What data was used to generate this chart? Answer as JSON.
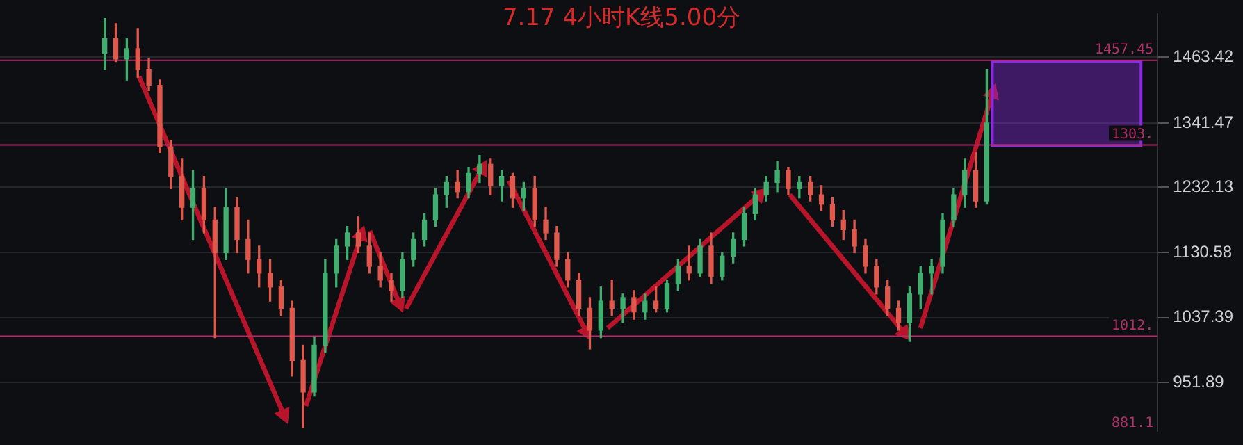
{
  "chart_data": {
    "type": "candlestick",
    "title": "7.17 4小时K线5.00分",
    "categories": [
      null,
      null,
      null,
      null,
      null,
      null,
      null,
      null,
      null,
      null,
      null,
      null,
      null,
      null,
      null,
      null,
      null,
      null,
      null,
      null,
      null,
      null,
      null,
      null,
      null,
      null,
      null,
      null,
      null,
      null,
      null,
      null,
      null,
      null,
      null,
      null,
      null,
      null,
      null,
      null,
      null,
      null,
      null,
      null,
      null,
      null,
      null,
      null,
      null,
      null,
      null,
      null,
      null,
      null,
      null,
      null,
      null,
      null,
      null,
      null,
      null,
      null,
      null,
      null,
      null,
      null,
      null,
      null,
      null,
      null,
      null,
      null,
      null,
      null,
      null,
      null,
      null,
      null,
      null,
      null,
      null,
      null,
      null,
      null,
      null,
      null,
      null,
      null,
      null,
      null,
      null,
      null,
      null,
      null,
      null,
      null,
      null,
      null,
      null,
      null,
      null,
      null,
      null,
      null,
      null
    ],
    "ohlc": [
      null,
      null,
      null,
      null,
      null,
      null,
      null,
      null,
      null,
      [
        1470,
        1540,
        1440,
        1500
      ],
      [
        1500,
        1530,
        1455,
        1460
      ],
      [
        1460,
        1500,
        1420,
        1480
      ],
      [
        1480,
        1520,
        1425,
        1440
      ],
      [
        1440,
        1460,
        1400,
        1410
      ],
      [
        1410,
        1420,
        1290,
        1300
      ],
      [
        1300,
        1310,
        1230,
        1250
      ],
      [
        1250,
        1280,
        1180,
        1200
      ],
      [
        1200,
        1260,
        1150,
        1230
      ],
      [
        1230,
        1250,
        1160,
        1180
      ],
      [
        1180,
        1200,
        1010,
        1130
      ],
      [
        1130,
        1230,
        1120,
        1200
      ],
      [
        1200,
        1215,
        1130,
        1150
      ],
      [
        1150,
        1180,
        1100,
        1120
      ],
      [
        1120,
        1140,
        1080,
        1100
      ],
      [
        1100,
        1120,
        1060,
        1080
      ],
      [
        1080,
        1090,
        1040,
        1050
      ],
      [
        1050,
        1060,
        960,
        980
      ],
      [
        980,
        1000,
        897,
        940
      ],
      [
        940,
        1010,
        935,
        1000
      ],
      [
        1000,
        1120,
        990,
        1100
      ],
      [
        1100,
        1150,
        1080,
        1140
      ],
      [
        1140,
        1170,
        1120,
        1160
      ],
      [
        1160,
        1185,
        1130,
        1140
      ],
      [
        1140,
        1160,
        1100,
        1110
      ],
      [
        1110,
        1130,
        1080,
        1090
      ],
      [
        1090,
        1100,
        1060,
        1075
      ],
      [
        1075,
        1130,
        1065,
        1120
      ],
      [
        1120,
        1160,
        1110,
        1150
      ],
      [
        1150,
        1190,
        1140,
        1180
      ],
      [
        1180,
        1230,
        1170,
        1220
      ],
      [
        1220,
        1250,
        1200,
        1240
      ],
      [
        1240,
        1260,
        1215,
        1225
      ],
      [
        1225,
        1265,
        1215,
        1255
      ],
      [
        1255,
        1285,
        1240,
        1270
      ],
      [
        1270,
        1280,
        1220,
        1235
      ],
      [
        1235,
        1260,
        1210,
        1250
      ],
      [
        1250,
        1255,
        1200,
        1215
      ],
      [
        1215,
        1240,
        1195,
        1230
      ],
      [
        1230,
        1250,
        1170,
        1180
      ],
      [
        1180,
        1200,
        1150,
        1160
      ],
      [
        1160,
        1170,
        1110,
        1120
      ],
      [
        1120,
        1130,
        1080,
        1090
      ],
      [
        1090,
        1100,
        1040,
        1050
      ],
      [
        1050,
        1065,
        995,
        1020
      ],
      [
        1020,
        1080,
        1010,
        1060
      ],
      [
        1060,
        1090,
        1040,
        1050
      ],
      [
        1050,
        1070,
        1030,
        1065
      ],
      [
        1065,
        1075,
        1035,
        1045
      ],
      [
        1045,
        1070,
        1035,
        1060
      ],
      [
        1060,
        1080,
        1045,
        1050
      ],
      [
        1050,
        1090,
        1045,
        1085
      ],
      [
        1085,
        1120,
        1075,
        1110
      ],
      [
        1110,
        1140,
        1090,
        1100
      ],
      [
        1100,
        1150,
        1095,
        1140
      ],
      [
        1140,
        1160,
        1085,
        1095
      ],
      [
        1095,
        1130,
        1090,
        1125
      ],
      [
        1125,
        1160,
        1115,
        1150
      ],
      [
        1150,
        1200,
        1140,
        1190
      ],
      [
        1190,
        1230,
        1180,
        1220
      ],
      [
        1220,
        1250,
        1210,
        1240
      ],
      [
        1240,
        1275,
        1225,
        1260
      ],
      [
        1260,
        1265,
        1220,
        1230
      ],
      [
        1230,
        1250,
        1215,
        1240
      ],
      [
        1240,
        1250,
        1210,
        1220
      ],
      [
        1220,
        1235,
        1195,
        1205
      ],
      [
        1205,
        1215,
        1170,
        1180
      ],
      [
        1180,
        1195,
        1150,
        1165
      ],
      [
        1165,
        1180,
        1130,
        1140
      ],
      [
        1140,
        1150,
        1100,
        1110
      ],
      [
        1110,
        1120,
        1070,
        1080
      ],
      [
        1080,
        1090,
        1040,
        1050
      ],
      [
        1050,
        1060,
        1020,
        1030
      ],
      [
        1030,
        1080,
        1005,
        1070
      ],
      [
        1070,
        1110,
        1050,
        1100
      ],
      [
        1100,
        1120,
        1070,
        1110
      ],
      [
        1110,
        1190,
        1100,
        1180
      ],
      [
        1180,
        1230,
        1170,
        1220
      ],
      [
        1220,
        1280,
        1200,
        1260
      ],
      [
        1260,
        1290,
        1200,
        1210
      ],
      [
        1210,
        1440,
        1205,
        1341.47
      ],
      null,
      null,
      null,
      null,
      null,
      null,
      null,
      null,
      null,
      null,
      null,
      null,
      null,
      null,
      null
    ],
    "log": "y",
    "ylim": [
      893,
      1549
    ],
    "yticks": [
      951.89,
      1037.39,
      1130.58,
      1232.13,
      1341.47,
      1463.42
    ],
    "tick_labels": "y",
    "grid": "y",
    "legend": false,
    "ref_lines": [
      {
        "axis": "y",
        "value": 1457.45,
        "label": "1457.45",
        "color": "#b0306a"
      },
      {
        "axis": "y",
        "value": 1303,
        "label": "1303.",
        "color": "#b0306a"
      },
      {
        "axis": "y",
        "value": 1012,
        "label": "1012.",
        "color": "#b0306a"
      }
    ],
    "bands": [
      {
        "axis": "y",
        "from": 1302,
        "to": 1455,
        "color": "#8a2be2"
      }
    ],
    "annotations": [
      "881.1"
    ]
  }
}
